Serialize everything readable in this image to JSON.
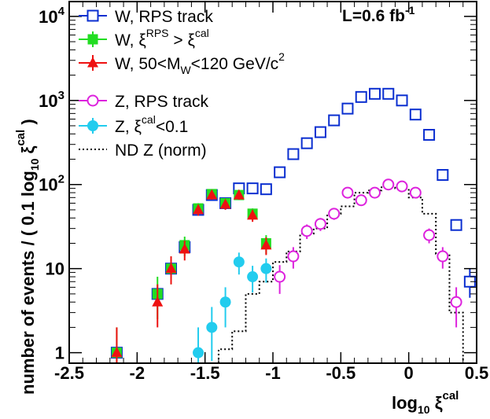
{
  "chart_data": {
    "type": "scatter",
    "xlabel": {
      "base": "log",
      "sub": "10",
      "sym": " ξ",
      "sup": "cal"
    },
    "ylabel": {
      "main": "number of events / ( 0.1 log",
      "sub": "10",
      "sym": " ξ",
      "sup": "cal",
      "close": " )"
    },
    "xlim": [
      -2.5,
      0.5
    ],
    "ylim_log": [
      0.75,
      15000
    ],
    "x_ticks": [
      -2.5,
      -2,
      -1.5,
      -1,
      -0.5,
      0,
      0.5
    ],
    "x_tick_labels": [
      "-2.5",
      "-2",
      "-1.5",
      "-1",
      "-0.5",
      "0",
      "0.5"
    ],
    "y_ticks": [
      1,
      10,
      100,
      1000,
      10000
    ],
    "y_tick_labels": [
      {
        "base": "1",
        "exp": ""
      },
      {
        "base": "10",
        "exp": ""
      },
      {
        "base": "10",
        "exp": "2"
      },
      {
        "base": "10",
        "exp": "3"
      },
      {
        "base": "10",
        "exp": "4"
      }
    ],
    "annotation": {
      "prefix": "L=0.6 fb",
      "sup": "-1"
    },
    "series": [
      {
        "name": "W, RPS track",
        "label": {
          "t1": "W, RPS track"
        },
        "color": "#0b2fd0",
        "marker": "open-square",
        "x": [
          -2.15,
          -1.85,
          -1.75,
          -1.65,
          -1.55,
          -1.45,
          -1.35,
          -1.25,
          -1.15,
          -1.05,
          -0.95,
          -0.85,
          -0.75,
          -0.65,
          -0.55,
          -0.45,
          -0.35,
          -0.25,
          -0.15,
          -0.05,
          0.05,
          0.15,
          0.25,
          0.35,
          0.45
        ],
        "y": [
          1,
          5,
          10,
          18,
          50,
          75,
          60,
          90,
          90,
          88,
          140,
          230,
          310,
          420,
          580,
          800,
          1100,
          1200,
          1200,
          1000,
          680,
          390,
          130,
          33,
          7
        ],
        "err_lo": [
          0,
          0,
          0,
          0,
          0,
          0,
          0,
          0,
          0,
          0,
          0,
          0,
          0,
          0,
          0,
          0,
          0,
          0,
          0,
          0,
          0,
          0,
          0,
          0,
          2.5
        ],
        "err_hi": [
          0,
          0,
          0,
          0,
          0,
          0,
          0,
          0,
          0,
          0,
          0,
          0,
          0,
          0,
          0,
          0,
          0,
          0,
          0,
          0,
          0,
          0,
          0,
          0,
          3
        ]
      },
      {
        "name": "W, ξRPS > ξcal",
        "label": {
          "t1": "W, ξ",
          "t1sup": "RPS",
          "t2": " > ξ",
          "t2sup": "cal"
        },
        "color": "#22dd22",
        "marker": "filled-square",
        "x": [
          -2.15,
          -1.85,
          -1.75,
          -1.65,
          -1.55,
          -1.45,
          -1.35,
          -1.25,
          -1.15,
          -1.05
        ],
        "y": [
          1,
          5,
          10,
          19,
          52,
          77,
          60,
          75,
          45,
          20
        ],
        "err_lo": [
          0.7,
          2.5,
          3.5,
          5,
          8,
          9,
          8,
          9,
          7,
          5
        ],
        "err_hi": [
          1,
          3,
          4,
          5,
          8,
          9,
          8,
          9,
          7,
          5
        ]
      },
      {
        "name": "W, 50<MW<120 GeV/c2",
        "label": {
          "t1": "W, 50<M",
          "t1sub": "W",
          "t2": "<120 GeV/c",
          "t2sup": "2"
        },
        "color": "#ee1111",
        "marker": "filled-triangle",
        "x": [
          -2.15,
          -1.85,
          -1.75,
          -1.65,
          -1.55,
          -1.45,
          -1.35,
          -1.25,
          -1.15,
          -1.05
        ],
        "y": [
          1,
          4,
          10,
          17,
          50,
          75,
          58,
          75,
          43,
          19
        ],
        "err_lo": [
          0.7,
          2,
          3.5,
          4.5,
          7.5,
          9,
          8,
          9,
          7,
          4.5
        ],
        "err_hi": [
          1,
          2.5,
          4,
          4.5,
          7.5,
          9,
          8,
          9,
          7,
          4.5
        ]
      },
      {
        "name": "Z, RPS track",
        "label": {
          "t1": "Z, RPS track"
        },
        "color": "#dd22dd",
        "marker": "open-circle",
        "x": [
          -0.95,
          -0.85,
          -0.75,
          -0.65,
          -0.55,
          -0.45,
          -0.35,
          -0.25,
          -0.15,
          -0.05,
          0.05,
          0.15,
          0.25,
          0.35
        ],
        "y": [
          8,
          14,
          28,
          34,
          45,
          80,
          65,
          80,
          100,
          95,
          80,
          25,
          14,
          4
        ],
        "err_lo": [
          3,
          4,
          5.5,
          6,
          7,
          9,
          8,
          9,
          10,
          10,
          9,
          5,
          4,
          2
        ],
        "err_hi": [
          3,
          4,
          5.5,
          6,
          7,
          9,
          8,
          9,
          10,
          10,
          9,
          5,
          4,
          2
        ]
      },
      {
        "name": "Z, ξcal<0.1",
        "label": {
          "t1": "Z, ξ",
          "t1sup": "cal",
          "t2": "<0.1"
        },
        "color": "#22ccee",
        "marker": "filled-circle",
        "x": [
          -1.55,
          -1.45,
          -1.35,
          -1.25,
          -1.15,
          -1.05
        ],
        "y": [
          1,
          2,
          4,
          12,
          8,
          10
        ],
        "err_lo": [
          0.7,
          1.2,
          2,
          3.5,
          2.8,
          3.2
        ],
        "err_hi": [
          1,
          1.5,
          2,
          3.5,
          2.8,
          3.2
        ]
      },
      {
        "name": "ND Z (norm)",
        "label": {
          "t1": "ND Z (norm)"
        },
        "color": "#000000",
        "marker": "dotted-step",
        "edges": [
          -1.4,
          -1.3,
          -1.2,
          -1.1,
          -1.0,
          -0.9,
          -0.8,
          -0.7,
          -0.6,
          -0.5,
          -0.4,
          -0.3,
          -0.2,
          -0.1,
          0.0,
          0.1,
          0.2,
          0.3,
          0.4
        ],
        "y": [
          1.1,
          1.8,
          5,
          7,
          12,
          16,
          26,
          30,
          45,
          55,
          80,
          85,
          95,
          90,
          70,
          45,
          15,
          3
        ]
      }
    ]
  }
}
